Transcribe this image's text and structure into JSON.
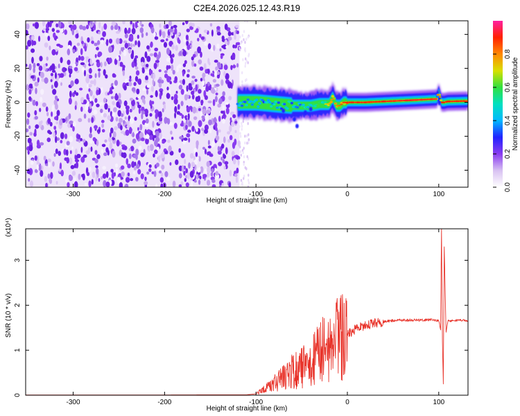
{
  "figure": {
    "title": "C2E4.2026.025.12.43.R19"
  },
  "chart_data": [
    {
      "type": "heatmap",
      "title": "C2E4.2026.025.12.43.R19",
      "xlabel": "Height of straight line (km)",
      "ylabel": "Frequency (Hz)",
      "xlim": [
        -352,
        132
      ],
      "ylim": [
        -50,
        48
      ],
      "xticks": [
        -300,
        -200,
        -100,
        0,
        100
      ],
      "xtick_labels": [
        "-300",
        "-200",
        "-100",
        "0",
        "100"
      ],
      "yticks": [
        -40,
        -20,
        0,
        20,
        40
      ],
      "ytick_labels": [
        "-40",
        "-20",
        "0",
        "20",
        "40"
      ],
      "colorbar": {
        "label": "Normalized spectral amplitude",
        "range": [
          0,
          1
        ],
        "ticks": [
          0,
          0.2,
          0.4,
          0.6,
          0.8
        ],
        "tick_labels": [
          "0.0",
          "0.2",
          "0.4",
          "0.6",
          "0.8"
        ],
        "colors": [
          "#ffffff",
          "#d8c2f2",
          "#8a3cf0",
          "#2222ff",
          "#00b8ff",
          "#00e0c0",
          "#30e040",
          "#d8e000",
          "#ff8800",
          "#ff2200",
          "#ff20a0"
        ]
      },
      "noise_region_x": [
        -352,
        -118
      ],
      "ridge": {
        "description_values": "dominant frequency (Hz) versus height (km)",
        "x": [
          -120,
          -100,
          -80,
          -60,
          -40,
          -30,
          -20,
          -16,
          -12,
          -8,
          -4,
          0,
          20,
          40,
          60,
          80,
          98,
          100,
          103,
          106,
          110,
          132
        ],
        "y": [
          0,
          0,
          -1,
          -2,
          -2,
          -1,
          -1,
          3,
          -2,
          -2,
          0,
          0,
          0,
          0.5,
          1,
          1.5,
          2,
          6,
          0,
          0,
          0.5,
          0.8
        ],
        "amplitude": [
          0.4,
          0.45,
          0.5,
          0.5,
          0.55,
          0.65,
          0.75,
          0.8,
          0.8,
          0.85,
          0.88,
          0.9,
          0.9,
          0.9,
          0.92,
          0.92,
          0.92,
          0.75,
          0.9,
          0.9,
          0.9,
          0.9
        ]
      }
    },
    {
      "type": "line",
      "xlabel": "Height of straight line (km)",
      "ylabel": "SNR (10 * v/v)",
      "yscale_note": "(x10⁴)",
      "xlim": [
        -352,
        132
      ],
      "ylim": [
        0,
        3.7
      ],
      "xticks": [
        -300,
        -200,
        -100,
        0,
        100
      ],
      "xtick_labels": [
        "-300",
        "-200",
        "-100",
        "0",
        "100"
      ],
      "yticks": [
        0,
        1,
        2,
        3
      ],
      "ytick_labels": [
        "0",
        "1",
        "2",
        "3"
      ],
      "series": [
        {
          "color": "#e8332a",
          "x": [
            -352,
            -200,
            -110,
            -100,
            -95,
            -90,
            -85,
            -80,
            -75,
            -70,
            -65,
            -60,
            -55,
            -50,
            -45,
            -40,
            -35,
            -30,
            -25,
            -20,
            -15,
            -10,
            -5,
            0,
            5,
            10,
            20,
            30,
            40,
            50,
            60,
            70,
            80,
            90,
            95,
            100,
            102,
            103,
            104,
            105,
            106,
            108,
            110,
            120,
            132
          ],
          "y": [
            0.005,
            0.005,
            0.01,
            0.03,
            0.08,
            0.15,
            0.22,
            0.3,
            0.36,
            0.42,
            0.48,
            0.52,
            0.56,
            0.62,
            0.7,
            0.78,
            0.86,
            0.95,
            1.02,
            1.1,
            1.18,
            1.25,
            1.3,
            1.36,
            1.42,
            1.47,
            1.55,
            1.6,
            1.64,
            1.66,
            1.67,
            1.67,
            1.67,
            1.68,
            1.67,
            1.66,
            1.45,
            3.7,
            1.2,
            0.25,
            3.3,
            1.4,
            1.65,
            1.67,
            1.66
          ]
        }
      ]
    }
  ]
}
